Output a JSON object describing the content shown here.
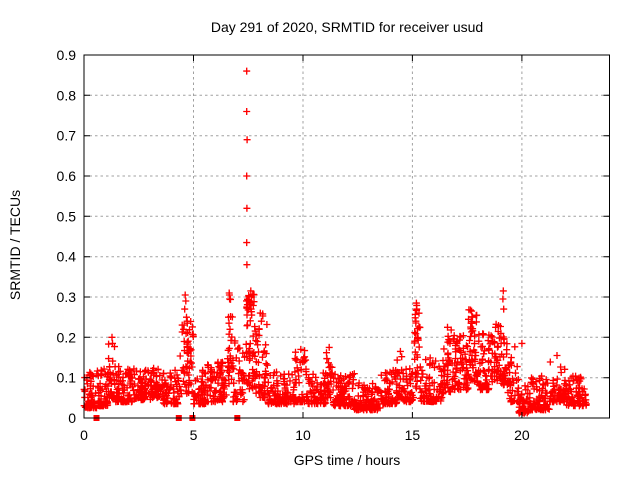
{
  "chart_data": {
    "type": "scatter",
    "title": "Day 291 of 2020, SRMTID for receiver usud",
    "xlabel": "GPS time / hours",
    "ylabel": "SRMTID / TECUs",
    "xlim": [
      0,
      24
    ],
    "ylim": [
      0,
      0.9
    ],
    "x_ticks": [
      0,
      5,
      10,
      15,
      20
    ],
    "x_tick_labels": [
      "0",
      "5",
      "10",
      "15",
      "20"
    ],
    "y_ticks": [
      0,
      0.1,
      0.2,
      0.3,
      0.4,
      0.5,
      0.6,
      0.7,
      0.8,
      0.9
    ],
    "y_tick_labels": [
      "0",
      "0.1",
      "0.2",
      "0.3",
      "0.4",
      "0.5",
      "0.6",
      "0.7",
      "0.8",
      "0.9"
    ],
    "grid": true,
    "legend": false,
    "marker": {
      "shape": "plus",
      "size": 7
    },
    "zero_marker": {
      "shape": "square",
      "size": 6
    },
    "colors": {
      "marker": "#ff0000",
      "axis": "#000000",
      "grid": "#a0a0a0",
      "background": "#ffffff"
    },
    "spike_points": [
      [
        7.43,
        0.86
      ],
      [
        7.43,
        0.76
      ],
      [
        7.45,
        0.69
      ],
      [
        7.43,
        0.6
      ],
      [
        7.44,
        0.52
      ],
      [
        7.43,
        0.435
      ],
      [
        7.44,
        0.38
      ],
      [
        4.62,
        0.305
      ],
      [
        4.65,
        0.29
      ],
      [
        4.6,
        0.27
      ],
      [
        4.68,
        0.25
      ],
      [
        4.72,
        0.235
      ],
      [
        4.55,
        0.22
      ],
      [
        6.63,
        0.31
      ],
      [
        6.65,
        0.295
      ],
      [
        6.6,
        0.25
      ],
      [
        6.62,
        0.235
      ],
      [
        6.67,
        0.22
      ],
      [
        7.62,
        0.315
      ],
      [
        7.65,
        0.3
      ],
      [
        7.6,
        0.285
      ],
      [
        7.63,
        0.27
      ],
      [
        7.66,
        0.255
      ],
      [
        8.05,
        0.26
      ],
      [
        8.1,
        0.24
      ],
      [
        8.0,
        0.22
      ],
      [
        15.18,
        0.285
      ],
      [
        15.2,
        0.27
      ],
      [
        15.16,
        0.24
      ],
      [
        17.7,
        0.265
      ],
      [
        17.72,
        0.25
      ],
      [
        17.68,
        0.235
      ],
      [
        19.15,
        0.315
      ],
      [
        19.13,
        0.295
      ],
      [
        19.17,
        0.27
      ],
      [
        20.0,
        0.185
      ],
      [
        11.2,
        0.175
      ],
      [
        9.9,
        0.17
      ],
      [
        14.45,
        0.165
      ],
      [
        1.28,
        0.2
      ],
      [
        1.3,
        0.185
      ],
      [
        18.8,
        0.225
      ],
      [
        16.6,
        0.225
      ],
      [
        21.6,
        0.155
      ]
    ],
    "zero_points": [
      [
        0.57,
        0
      ],
      [
        4.33,
        0
      ],
      [
        4.95,
        0
      ],
      [
        7.0,
        0
      ]
    ],
    "noise_bands_x0_x1_n_ylo_yhi_pow": [
      [
        0.0,
        0.6,
        60,
        0.025,
        0.115,
        2
      ],
      [
        0.6,
        1.1,
        50,
        0.03,
        0.135,
        2
      ],
      [
        1.1,
        1.45,
        35,
        0.05,
        0.205,
        1.5
      ],
      [
        1.45,
        2.2,
        70,
        0.04,
        0.13,
        2
      ],
      [
        2.2,
        3.1,
        80,
        0.045,
        0.125,
        2
      ],
      [
        3.1,
        3.6,
        45,
        0.05,
        0.135,
        2
      ],
      [
        3.6,
        4.35,
        65,
        0.035,
        0.12,
        2
      ],
      [
        4.35,
        5.0,
        55,
        0.06,
        0.24,
        1.5
      ],
      [
        5.0,
        5.6,
        50,
        0.035,
        0.12,
        2
      ],
      [
        5.6,
        6.5,
        75,
        0.04,
        0.14,
        2
      ],
      [
        6.55,
        6.8,
        25,
        0.08,
        0.31,
        1.2
      ],
      [
        6.8,
        7.35,
        45,
        0.04,
        0.2,
        1.8
      ],
      [
        7.4,
        7.8,
        55,
        0.07,
        0.31,
        1.3
      ],
      [
        7.8,
        8.4,
        55,
        0.05,
        0.26,
        1.8
      ],
      [
        8.4,
        9.6,
        95,
        0.035,
        0.115,
        2
      ],
      [
        9.6,
        10.15,
        45,
        0.04,
        0.17,
        1.8
      ],
      [
        10.15,
        11.05,
        75,
        0.035,
        0.115,
        2
      ],
      [
        11.05,
        11.35,
        28,
        0.05,
        0.175,
        1.6
      ],
      [
        11.35,
        12.35,
        85,
        0.03,
        0.11,
        2
      ],
      [
        12.35,
        13.55,
        95,
        0.02,
        0.09,
        2
      ],
      [
        13.55,
        14.3,
        60,
        0.035,
        0.12,
        2
      ],
      [
        14.3,
        14.55,
        22,
        0.05,
        0.16,
        1.6
      ],
      [
        14.55,
        15.05,
        40,
        0.04,
        0.125,
        2
      ],
      [
        15.05,
        15.35,
        30,
        0.07,
        0.28,
        1.4
      ],
      [
        15.35,
        16.35,
        85,
        0.04,
        0.15,
        2
      ],
      [
        16.35,
        16.85,
        45,
        0.06,
        0.22,
        1.8
      ],
      [
        16.85,
        17.55,
        65,
        0.07,
        0.21,
        1.8
      ],
      [
        17.55,
        17.95,
        45,
        0.09,
        0.27,
        1.4
      ],
      [
        17.95,
        18.55,
        55,
        0.07,
        0.21,
        1.8
      ],
      [
        18.55,
        19.05,
        45,
        0.09,
        0.235,
        1.6
      ],
      [
        19.05,
        19.35,
        25,
        0.08,
        0.22,
        1.6
      ],
      [
        19.35,
        19.85,
        40,
        0.04,
        0.185,
        1.8
      ],
      [
        19.85,
        20.35,
        40,
        0.012,
        0.08,
        1.8
      ],
      [
        20.35,
        21.25,
        70,
        0.02,
        0.105,
        2
      ],
      [
        21.25,
        22.0,
        60,
        0.04,
        0.15,
        2
      ],
      [
        22.0,
        22.95,
        75,
        0.03,
        0.105,
        2
      ]
    ]
  }
}
